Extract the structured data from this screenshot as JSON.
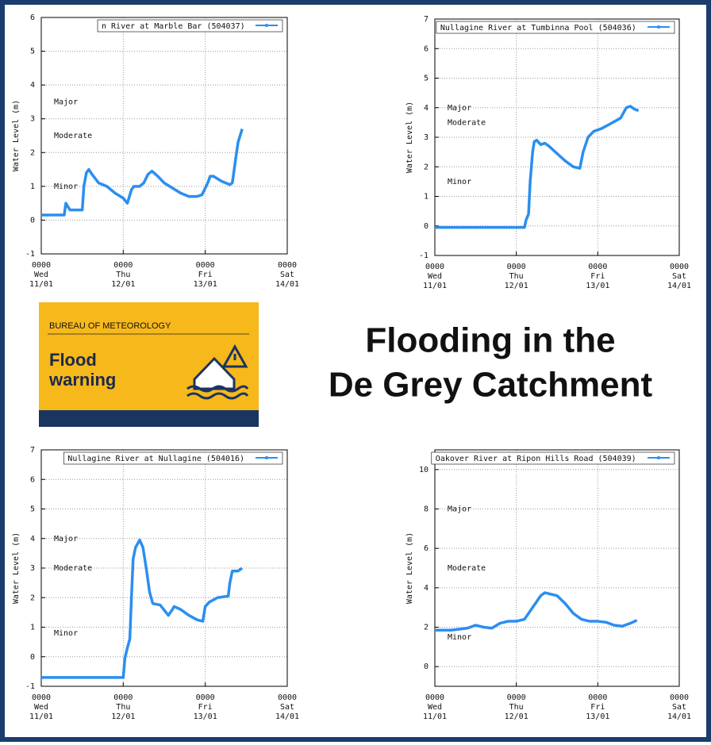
{
  "headline": [
    "Flooding in the",
    "De Grey Catchment"
  ],
  "badge": {
    "agency": "BUREAU OF METEOROLOGY",
    "title": [
      "Flood",
      "warning"
    ]
  },
  "chart_data": [
    {
      "type": "line",
      "y_label": "Water Level (m)",
      "xlim": [
        0,
        3
      ],
      "xticks": [
        {
          "value": 0,
          "label": "0000\nWed\n11/01"
        },
        {
          "value": 1,
          "label": "0000\nThu\n12/01"
        },
        {
          "value": 2,
          "label": "0000\nFri\n13/01"
        },
        {
          "value": 3,
          "label": "0000\nSat\n14/01"
        }
      ],
      "ylim": [
        -1,
        6
      ],
      "yticks": [
        -1,
        0,
        1,
        2,
        3,
        4,
        5,
        6
      ],
      "grid": true,
      "legend": "top-right",
      "flood_levels": [
        {
          "label": "Major",
          "value": 3.5
        },
        {
          "label": "Moderate",
          "value": 2.5
        },
        {
          "label": "Minor",
          "value": 1.0
        }
      ],
      "series": [
        {
          "name": "n River at Marble Bar (504037)",
          "color": "#2b8ef0",
          "x": [
            0,
            0.2,
            0.28,
            0.3,
            0.35,
            0.42,
            0.5,
            0.52,
            0.55,
            0.58,
            0.62,
            0.7,
            0.8,
            0.9,
            1.0,
            1.05,
            1.1,
            1.13,
            1.2,
            1.25,
            1.3,
            1.35,
            1.42,
            1.5,
            1.6,
            1.7,
            1.8,
            1.9,
            1.96,
            2.03,
            2.06,
            2.1,
            2.2,
            2.3,
            2.33,
            2.37,
            2.4,
            2.45
          ],
          "values": [
            0.15,
            0.15,
            0.15,
            0.5,
            0.3,
            0.3,
            0.3,
            1.0,
            1.4,
            1.5,
            1.35,
            1.1,
            1.0,
            0.8,
            0.65,
            0.5,
            0.9,
            1.0,
            1.0,
            1.1,
            1.35,
            1.45,
            1.3,
            1.1,
            0.95,
            0.8,
            0.7,
            0.7,
            0.75,
            1.1,
            1.3,
            1.3,
            1.15,
            1.05,
            1.1,
            1.8,
            2.3,
            2.7
          ]
        }
      ]
    },
    {
      "type": "line",
      "y_label": "Water Level (m)",
      "xlim": [
        0,
        3
      ],
      "xticks": [
        {
          "value": 0,
          "label": "0000\nWed\n11/01"
        },
        {
          "value": 1,
          "label": "0000\nThu\n12/01"
        },
        {
          "value": 2,
          "label": "0000\nFri\n13/01"
        },
        {
          "value": 3,
          "label": "0000\nSat\n14/01"
        }
      ],
      "ylim": [
        -1,
        7
      ],
      "yticks": [
        -1,
        0,
        1,
        2,
        3,
        4,
        5,
        6,
        7
      ],
      "grid": true,
      "legend": "top-right",
      "flood_levels": [
        {
          "label": "Major",
          "value": 4.0
        },
        {
          "label": "Moderate",
          "value": 3.5
        },
        {
          "label": "Minor",
          "value": 1.5
        }
      ],
      "series": [
        {
          "name": "Nullagine River at Tumbinna Pool (504036)",
          "color": "#2b8ef0",
          "x": [
            0,
            0.5,
            1.0,
            1.1,
            1.12,
            1.15,
            1.17,
            1.2,
            1.22,
            1.25,
            1.3,
            1.35,
            1.4,
            1.5,
            1.6,
            1.7,
            1.78,
            1.82,
            1.88,
            1.95,
            2.05,
            2.15,
            2.28,
            2.35,
            2.4,
            2.45,
            2.5
          ],
          "values": [
            -0.05,
            -0.05,
            -0.05,
            -0.05,
            0.2,
            0.4,
            1.5,
            2.5,
            2.85,
            2.9,
            2.75,
            2.8,
            2.7,
            2.45,
            2.2,
            2.0,
            1.95,
            2.5,
            3.0,
            3.2,
            3.3,
            3.45,
            3.65,
            4.0,
            4.05,
            3.95,
            3.9
          ]
        }
      ]
    },
    {
      "type": "line",
      "y_label": "Water Level (m)",
      "xlim": [
        0,
        3
      ],
      "xticks": [
        {
          "value": 0,
          "label": "0000\nWed\n11/01"
        },
        {
          "value": 1,
          "label": "0000\nThu\n12/01"
        },
        {
          "value": 2,
          "label": "0000\nFri\n13/01"
        },
        {
          "value": 3,
          "label": "0000\nSat\n14/01"
        }
      ],
      "ylim": [
        -1,
        7
      ],
      "yticks": [
        -1,
        0,
        1,
        2,
        3,
        4,
        5,
        6,
        7
      ],
      "grid": true,
      "legend": "top-right",
      "flood_levels": [
        {
          "label": "Major",
          "value": 4.0
        },
        {
          "label": "Moderate",
          "value": 3.0
        },
        {
          "label": "Minor",
          "value": 0.8
        }
      ],
      "series": [
        {
          "name": "Nullagine River at Nullagine (504016)",
          "color": "#2b8ef0",
          "x": [
            0,
            0.5,
            1.0,
            1.02,
            1.05,
            1.08,
            1.1,
            1.12,
            1.15,
            1.2,
            1.24,
            1.28,
            1.32,
            1.36,
            1.45,
            1.55,
            1.6,
            1.62,
            1.7,
            1.8,
            1.9,
            1.97,
            2.0,
            2.05,
            2.15,
            2.28,
            2.3,
            2.33,
            2.4,
            2.45
          ],
          "values": [
            -0.7,
            -0.7,
            -0.7,
            -0.05,
            0.3,
            0.6,
            2.0,
            3.3,
            3.7,
            3.95,
            3.7,
            3.0,
            2.2,
            1.8,
            1.75,
            1.4,
            1.6,
            1.7,
            1.6,
            1.4,
            1.25,
            1.2,
            1.7,
            1.85,
            2.0,
            2.05,
            2.5,
            2.9,
            2.9,
            3.0
          ]
        }
      ]
    },
    {
      "type": "line",
      "y_label": "Water Level (m)",
      "xlim": [
        0,
        3
      ],
      "xticks": [
        {
          "value": 0,
          "label": "0000\nWed\n11/01"
        },
        {
          "value": 1,
          "label": "0000\nThu\n12/01"
        },
        {
          "value": 2,
          "label": "0000\nFri\n13/01"
        },
        {
          "value": 3,
          "label": "0000\nSat\n14/01"
        }
      ],
      "ylim": [
        -1,
        11
      ],
      "yticks": [
        0,
        2,
        4,
        6,
        8,
        10
      ],
      "grid": true,
      "legend": "top-right",
      "flood_levels": [
        {
          "label": "Major",
          "value": 8.0
        },
        {
          "label": "Moderate",
          "value": 5.0
        },
        {
          "label": "Minor",
          "value": 1.5
        }
      ],
      "series": [
        {
          "name": "Oakover River at Ripon Hills Road (504039)",
          "color": "#2b8ef0",
          "x": [
            0,
            0.2,
            0.4,
            0.5,
            0.6,
            0.7,
            0.8,
            0.9,
            1.0,
            1.1,
            1.2,
            1.3,
            1.35,
            1.45,
            1.5,
            1.6,
            1.7,
            1.8,
            1.9,
            2.0,
            2.1,
            2.2,
            2.3,
            2.4,
            2.48
          ],
          "values": [
            1.85,
            1.85,
            1.95,
            2.1,
            2.0,
            1.95,
            2.2,
            2.3,
            2.3,
            2.4,
            3.0,
            3.6,
            3.75,
            3.65,
            3.6,
            3.2,
            2.7,
            2.4,
            2.3,
            2.3,
            2.25,
            2.1,
            2.05,
            2.2,
            2.35
          ]
        }
      ]
    }
  ]
}
